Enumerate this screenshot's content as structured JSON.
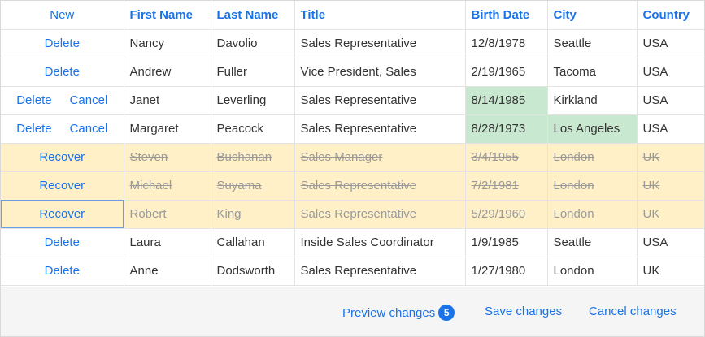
{
  "grid": {
    "columns": {
      "command": "New",
      "first_name": "First Name",
      "last_name": "Last Name",
      "title": "Title",
      "birth_date": "Birth Date",
      "city": "City",
      "country": "Country"
    },
    "rows": [
      {
        "commands": [
          "Delete"
        ],
        "state": "normal",
        "first_name": "Nancy",
        "last_name": "Davolio",
        "title": "Sales Representative",
        "birth_date": "12/8/1978",
        "city": "Seattle",
        "country": "USA"
      },
      {
        "commands": [
          "Delete"
        ],
        "state": "normal",
        "first_name": "Andrew",
        "last_name": "Fuller",
        "title": "Vice President, Sales",
        "birth_date": "2/19/1965",
        "city": "Tacoma",
        "country": "USA"
      },
      {
        "commands": [
          "Delete",
          "Cancel"
        ],
        "state": "modified",
        "first_name": "Janet",
        "last_name": "Leverling",
        "title": "Sales Representative",
        "birth_date": "8/14/1985",
        "city": "Kirkland",
        "country": "USA"
      },
      {
        "commands": [
          "Delete",
          "Cancel"
        ],
        "state": "modified",
        "first_name": "Margaret",
        "last_name": "Peacock",
        "title": "Sales Representative",
        "birth_date": "8/28/1973",
        "city": "Los Angeles",
        "country": "USA"
      },
      {
        "commands": [
          "Recover"
        ],
        "state": "removed",
        "first_name": "Steven",
        "last_name": "Buchanan",
        "title": "Sales Manager",
        "birth_date": "3/4/1955",
        "city": "London",
        "country": "UK"
      },
      {
        "commands": [
          "Recover"
        ],
        "state": "removed",
        "first_name": "Michael",
        "last_name": "Suyama",
        "title": "Sales Representative",
        "birth_date": "7/2/1981",
        "city": "London",
        "country": "UK"
      },
      {
        "commands": [
          "Recover"
        ],
        "state": "removed",
        "first_name": "Robert",
        "last_name": "King",
        "title": "Sales Representative",
        "birth_date": "5/29/1960",
        "city": "London",
        "country": "UK"
      },
      {
        "commands": [
          "Delete"
        ],
        "state": "normal",
        "first_name": "Laura",
        "last_name": "Callahan",
        "title": "Inside Sales Coordinator",
        "birth_date": "1/9/1985",
        "city": "Seattle",
        "country": "USA"
      },
      {
        "commands": [
          "Delete"
        ],
        "state": "normal",
        "first_name": "Anne",
        "last_name": "Dodsworth",
        "title": "Sales Representative",
        "birth_date": "1/27/1980",
        "city": "London",
        "country": "UK"
      }
    ],
    "modified_cells": [
      {
        "row": 2,
        "fields": [
          "birth_date"
        ]
      },
      {
        "row": 3,
        "fields": [
          "birth_date",
          "city"
        ]
      }
    ],
    "focused_row": 6
  },
  "footer": {
    "preview_label": "Preview changes",
    "change_count": "5",
    "save_label": "Save changes",
    "cancel_label": "Cancel changes"
  },
  "colors": {
    "accent": "#1a73e8",
    "removed_row": "#fff0c8",
    "modified_cell": "#c8e8cf"
  }
}
